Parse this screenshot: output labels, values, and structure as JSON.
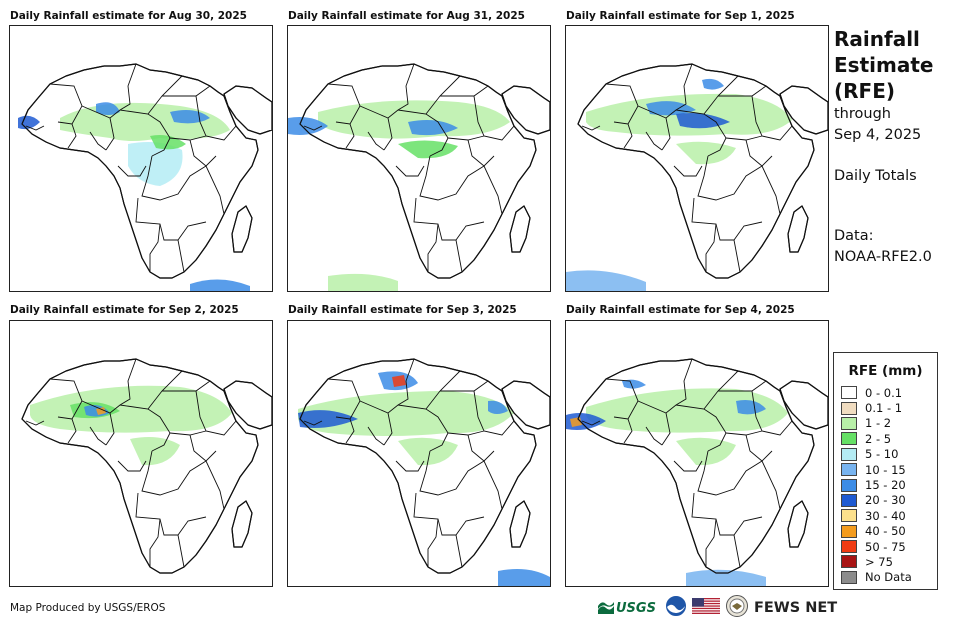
{
  "panels": [
    {
      "title": "Daily Rainfall estimate for Aug 30, 2025"
    },
    {
      "title": "Daily Rainfall estimate for Aug 31, 2025"
    },
    {
      "title": "Daily Rainfall estimate for Sep 1, 2025"
    },
    {
      "title": "Daily Rainfall estimate for Sep 2, 2025"
    },
    {
      "title": "Daily Rainfall estimate for Sep 3, 2025"
    },
    {
      "title": "Daily Rainfall estimate for Sep 4, 2025"
    }
  ],
  "side": {
    "title_line1": "Rainfall",
    "title_line2": "Estimate",
    "title_line3": "(RFE)",
    "through": "through",
    "date": "Sep 4, 2025",
    "totals": "Daily Totals",
    "data_label": "Data:",
    "data_source": "NOAA-RFE2.0"
  },
  "legend": {
    "title": "RFE (mm)",
    "items": [
      {
        "label": "0 - 0.1",
        "color": "#ffffff"
      },
      {
        "label": "0.1 - 1",
        "color": "#f0dcc0"
      },
      {
        "label": "1 - 2",
        "color": "#b8f0a8"
      },
      {
        "label": "2 - 5",
        "color": "#66e066"
      },
      {
        "label": "5 - 10",
        "color": "#b4ecf4"
      },
      {
        "label": "10 - 15",
        "color": "#78b4f0"
      },
      {
        "label": "15 - 20",
        "color": "#3c8ce6"
      },
      {
        "label": "20 - 30",
        "color": "#1e5ad2"
      },
      {
        "label": "30 - 40",
        "color": "#fce08c"
      },
      {
        "label": "40 - 50",
        "color": "#f49c1e"
      },
      {
        "label": "50 - 75",
        "color": "#f03c14"
      },
      {
        "label": "> 75",
        "color": "#a81414"
      },
      {
        "label": "No Data",
        "color": "#8c8c8c"
      }
    ]
  },
  "footer": {
    "credit": "Map Produced by USGS/EROS",
    "usgs": "USGS",
    "fews": "FEWS NET"
  }
}
